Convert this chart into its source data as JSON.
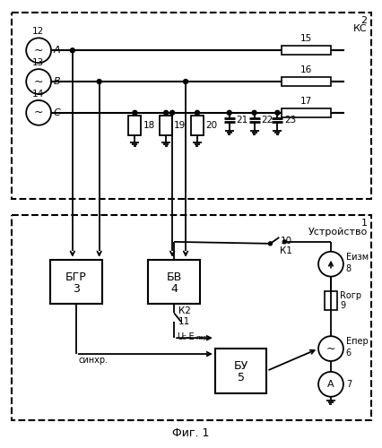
{
  "title": "Фиг. 1",
  "bg_color": "#ffffff",
  "box1_label_num": "1",
  "box1_label_text": "Устройство",
  "box2_label_num": "2",
  "box2_label_text": "КС",
  "bgr_line1": "БГР",
  "bgr_line2": "3",
  "bv_line1": "БВ",
  "bv_line2": "4",
  "bu_line1": "БУ",
  "bu_line2": "5",
  "phase_labels": [
    "A",
    "B",
    "C"
  ],
  "gen_nums": [
    "12",
    "13",
    "14"
  ],
  "load_nums": [
    "15",
    "16",
    "17"
  ],
  "comp_nums": [
    "18",
    "19",
    "20",
    "21",
    "22",
    "23"
  ],
  "sinhr_label": "синхр.",
  "uc_label": "U",
  "c_sub": "C",
  "eper_label": "-E",
  "per_suffix": "пер",
  "eizm_label": "E",
  "izm_suffix": "изм",
  "eper_full": "E",
  "per_full": "пер",
  "rogr_label": "R",
  "ogr_suffix": "огр",
  "k1_num": "10",
  "k1_label": "К1",
  "k2_label": "К2",
  "k2_num": "11",
  "num_6": "6",
  "num_7": "7",
  "num_8": "8",
  "num_9": "9",
  "a_label": "A"
}
